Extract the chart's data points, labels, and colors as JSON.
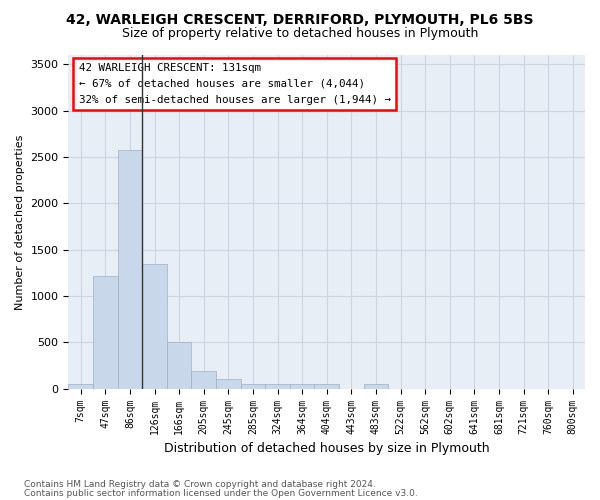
{
  "title1": "42, WARLEIGH CRESCENT, DERRIFORD, PLYMOUTH, PL6 5BS",
  "title2": "Size of property relative to detached houses in Plymouth",
  "xlabel": "Distribution of detached houses by size in Plymouth",
  "ylabel": "Number of detached properties",
  "annotation_title": "42 WARLEIGH CRESCENT: 131sqm",
  "annotation_line2": "← 67% of detached houses are smaller (4,044)",
  "annotation_line3": "32% of semi-detached houses are larger (1,944) →",
  "property_bin_index": 3,
  "marker_color": "#333333",
  "bar_color": "#c8d8ea",
  "bar_edge_color": "#9ab0c8",
  "grid_color": "#ccd5e0",
  "background_color": "#e8eef5",
  "footer_line1": "Contains HM Land Registry data © Crown copyright and database right 2024.",
  "footer_line2": "Contains public sector information licensed under the Open Government Licence v3.0.",
  "bin_labels": [
    "7sqm",
    "47sqm",
    "86sqm",
    "126sqm",
    "166sqm",
    "205sqm",
    "245sqm",
    "285sqm",
    "324sqm",
    "364sqm",
    "404sqm",
    "443sqm",
    "483sqm",
    "522sqm",
    "562sqm",
    "602sqm",
    "641sqm",
    "681sqm",
    "721sqm",
    "760sqm",
    "800sqm"
  ],
  "bar_values": [
    50,
    1220,
    2580,
    1340,
    500,
    195,
    105,
    50,
    50,
    50,
    50,
    0,
    50,
    0,
    0,
    0,
    0,
    0,
    0,
    0,
    0
  ],
  "ylim": [
    0,
    3600
  ],
  "yticks": [
    0,
    500,
    1000,
    1500,
    2000,
    2500,
    3000,
    3500
  ]
}
